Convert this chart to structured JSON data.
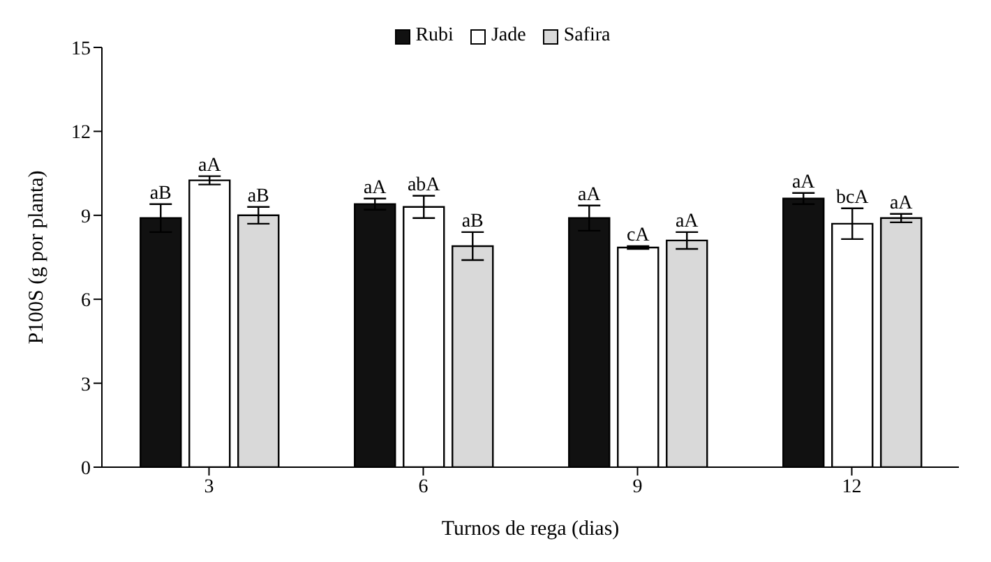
{
  "chart_data": {
    "type": "bar",
    "xlabel": "Turnos de rega (dias)",
    "ylabel": "P100S  (g por planta)",
    "categories": [
      "3",
      "6",
      "9",
      "12"
    ],
    "ylim": [
      0,
      15
    ],
    "yticks": [
      0,
      3,
      6,
      9,
      12,
      15
    ],
    "grid": false,
    "legend": "top",
    "series": [
      {
        "name": "Rubi",
        "color": "#111111",
        "values": [
          8.9,
          9.4,
          8.9,
          9.6
        ],
        "errors": [
          0.5,
          0.2,
          0.45,
          0.2
        ],
        "value_labels": [
          "aB",
          "aA",
          "aA",
          "aA"
        ]
      },
      {
        "name": "Jade",
        "color": "#ffffff",
        "values": [
          10.25,
          9.3,
          7.85,
          8.7
        ],
        "errors": [
          0.15,
          0.4,
          0.05,
          0.55
        ],
        "value_labels": [
          "aA",
          "abA",
          "cA",
          "bcA"
        ]
      },
      {
        "name": "Safira",
        "color": "#d9d9d9",
        "values": [
          9.0,
          7.9,
          8.1,
          8.9
        ],
        "errors": [
          0.3,
          0.5,
          0.3,
          0.15
        ],
        "value_labels": [
          "aB",
          "aB",
          "aA",
          "aA"
        ]
      }
    ]
  }
}
